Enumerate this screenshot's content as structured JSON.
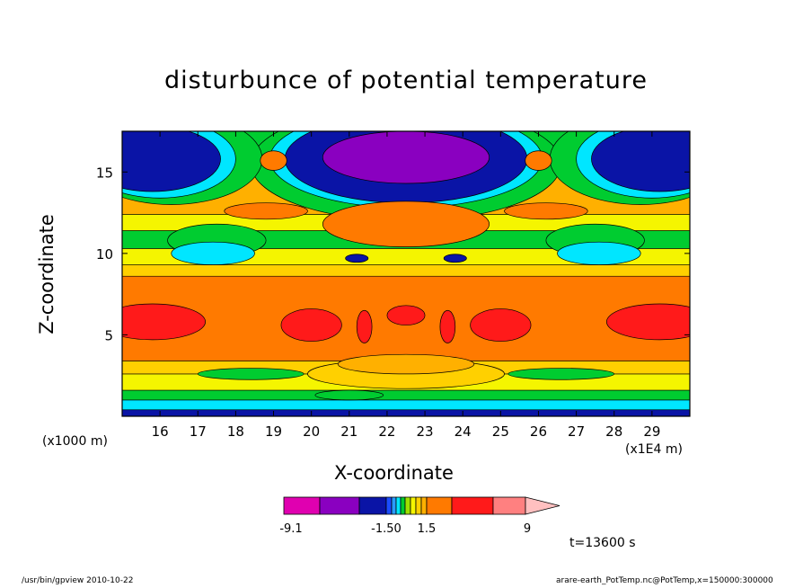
{
  "chart_data": {
    "type": "heatmap",
    "title": "disturbunce of potential temperature",
    "xlabel": "X-coordinate",
    "ylabel": "Z-coordinate",
    "x_unit": "(x1E4 m)",
    "y_unit": "(x1000 m)",
    "xlim": [
      15,
      30
    ],
    "ylim": [
      0,
      17.5
    ],
    "x_ticks": [
      16,
      17,
      18,
      19,
      20,
      21,
      22,
      23,
      24,
      25,
      26,
      27,
      28,
      29
    ],
    "y_ticks": [
      5,
      10,
      15
    ],
    "time_label": "t=13600 s",
    "colorbar": {
      "labels": [
        {
          "value": -9.1,
          "text": "-9.1"
        },
        {
          "value": -1.5,
          "text": "-1.50"
        },
        {
          "value": 1.5,
          "text": "1.5"
        },
        {
          "value": 9,
          "text": "9"
        }
      ],
      "colors": [
        "#e000b0",
        "#8a00c0",
        "#0a14a6",
        "#1b4cff",
        "#2a9bff",
        "#00e6ff",
        "#00cc30",
        "#9fe000",
        "#f5f500",
        "#ffd000",
        "#ffb000",
        "#ff7a00",
        "#ff1a1a",
        "#ff8080",
        "#ffc0c0"
      ]
    },
    "bands": [
      {
        "z": [
          0,
          0.4
        ],
        "color": "#0a14a6"
      },
      {
        "z": [
          0.4,
          1.0
        ],
        "color": "#00e6ff"
      },
      {
        "z": [
          1.0,
          1.6
        ],
        "color": "#00cc30"
      },
      {
        "z": [
          1.6,
          2.6
        ],
        "color": "#f5f500"
      },
      {
        "z": [
          2.6,
          3.4
        ],
        "color": "#ffd000"
      },
      {
        "z": [
          3.4,
          8.6
        ],
        "color": "#ff7a00"
      },
      {
        "z": [
          8.6,
          9.3
        ],
        "color": "#ffd000"
      },
      {
        "z": [
          9.3,
          10.3
        ],
        "color": "#f5f500"
      },
      {
        "z": [
          10.3,
          11.4
        ],
        "color": "#00cc30"
      },
      {
        "z": [
          11.4,
          12.4
        ],
        "color": "#f5f500"
      },
      {
        "z": [
          12.4,
          15.5
        ],
        "color": "#ffb000"
      },
      {
        "z": [
          15.5,
          17.5
        ],
        "color": "#00cc30"
      }
    ],
    "features": [
      {
        "shape": "ellipse",
        "cx": 22.5,
        "cz": 15.5,
        "rx": 4.1,
        "rz": 3.5,
        "color": "#00cc30"
      },
      {
        "shape": "ellipse",
        "cx": 22.5,
        "cz": 15.8,
        "rx": 3.6,
        "rz": 3.0,
        "color": "#00e6ff"
      },
      {
        "shape": "ellipse",
        "cx": 22.5,
        "cz": 15.8,
        "rx": 3.2,
        "rz": 2.7,
        "color": "#0a14a6"
      },
      {
        "shape": "ellipse",
        "cx": 22.5,
        "cz": 15.9,
        "rx": 2.2,
        "rz": 1.6,
        "color": "#8a00c0"
      },
      {
        "shape": "ellipse",
        "cx": 16.3,
        "cz": 15.8,
        "rx": 2.4,
        "rz": 2.8,
        "color": "#00cc30"
      },
      {
        "shape": "ellipse",
        "cx": 16.0,
        "cz": 15.8,
        "rx": 2.0,
        "rz": 2.4,
        "color": "#00e6ff"
      },
      {
        "shape": "ellipse",
        "cx": 15.8,
        "cz": 15.8,
        "rx": 1.8,
        "rz": 2.0,
        "color": "#0a14a6"
      },
      {
        "shape": "ellipse",
        "cx": 28.7,
        "cz": 15.8,
        "rx": 2.4,
        "rz": 2.8,
        "color": "#00cc30"
      },
      {
        "shape": "ellipse",
        "cx": 29.0,
        "cz": 15.8,
        "rx": 2.0,
        "rz": 2.4,
        "color": "#00e6ff"
      },
      {
        "shape": "ellipse",
        "cx": 29.2,
        "cz": 15.8,
        "rx": 1.8,
        "rz": 2.0,
        "color": "#0a14a6"
      },
      {
        "shape": "ellipse",
        "cx": 17.5,
        "cz": 10.8,
        "rx": 1.3,
        "rz": 1.0,
        "color": "#00cc30"
      },
      {
        "shape": "ellipse",
        "cx": 17.4,
        "cz": 10.0,
        "rx": 1.1,
        "rz": 0.7,
        "color": "#00e6ff"
      },
      {
        "shape": "ellipse",
        "cx": 27.5,
        "cz": 10.8,
        "rx": 1.3,
        "rz": 1.0,
        "color": "#00cc30"
      },
      {
        "shape": "ellipse",
        "cx": 27.6,
        "cz": 10.0,
        "rx": 1.1,
        "rz": 0.7,
        "color": "#00e6ff"
      },
      {
        "shape": "ellipse",
        "cx": 22.5,
        "cz": 11.8,
        "rx": 2.2,
        "rz": 1.4,
        "color": "#ff7a00"
      },
      {
        "shape": "ellipse",
        "cx": 18.8,
        "cz": 12.6,
        "rx": 1.1,
        "rz": 0.5,
        "color": "#ff7a00"
      },
      {
        "shape": "ellipse",
        "cx": 26.2,
        "cz": 12.6,
        "rx": 1.1,
        "rz": 0.5,
        "color": "#ff7a00"
      },
      {
        "shape": "ellipse",
        "cx": 19.0,
        "cz": 15.7,
        "rx": 0.35,
        "rz": 0.6,
        "color": "#ff7a00"
      },
      {
        "shape": "ellipse",
        "cx": 26.0,
        "cz": 15.7,
        "rx": 0.35,
        "rz": 0.6,
        "color": "#ff7a00"
      },
      {
        "shape": "ellipse",
        "cx": 21.2,
        "cz": 9.7,
        "rx": 0.3,
        "rz": 0.25,
        "color": "#0a14a6"
      },
      {
        "shape": "ellipse",
        "cx": 23.8,
        "cz": 9.7,
        "rx": 0.3,
        "rz": 0.25,
        "color": "#0a14a6"
      },
      {
        "shape": "ellipse",
        "cx": 15.8,
        "cz": 5.8,
        "rx": 1.4,
        "rz": 1.1,
        "color": "#ff1a1a"
      },
      {
        "shape": "ellipse",
        "cx": 29.2,
        "cz": 5.8,
        "rx": 1.4,
        "rz": 1.1,
        "color": "#ff1a1a"
      },
      {
        "shape": "ellipse",
        "cx": 20.0,
        "cz": 5.6,
        "rx": 0.8,
        "rz": 1.0,
        "color": "#ff1a1a"
      },
      {
        "shape": "ellipse",
        "cx": 25.0,
        "cz": 5.6,
        "rx": 0.8,
        "rz": 1.0,
        "color": "#ff1a1a"
      },
      {
        "shape": "ellipse",
        "cx": 21.4,
        "cz": 5.5,
        "rx": 0.2,
        "rz": 1.0,
        "color": "#ff1a1a"
      },
      {
        "shape": "ellipse",
        "cx": 23.6,
        "cz": 5.5,
        "rx": 0.2,
        "rz": 1.0,
        "color": "#ff1a1a"
      },
      {
        "shape": "ellipse",
        "cx": 22.5,
        "cz": 6.2,
        "rx": 0.5,
        "rz": 0.6,
        "color": "#ff1a1a"
      },
      {
        "shape": "ellipse",
        "cx": 22.5,
        "cz": 2.6,
        "rx": 2.6,
        "rz": 0.9,
        "color": "#ffd000"
      },
      {
        "shape": "ellipse",
        "cx": 22.5,
        "cz": 3.2,
        "rx": 1.8,
        "rz": 0.6,
        "color": "#ffb000"
      },
      {
        "shape": "ellipse",
        "cx": 18.4,
        "cz": 2.6,
        "rx": 1.4,
        "rz": 0.35,
        "color": "#00cc30"
      },
      {
        "shape": "ellipse",
        "cx": 26.6,
        "cz": 2.6,
        "rx": 1.4,
        "rz": 0.35,
        "color": "#00cc30"
      },
      {
        "shape": "ellipse",
        "cx": 21.0,
        "cz": 1.3,
        "rx": 0.9,
        "rz": 0.3,
        "color": "#00cc30"
      }
    ]
  },
  "footer": {
    "left": "/usr/bin/gpview  2010-10-22",
    "right": "arare-earth_PotTemp.nc@PotTemp,x=150000:300000"
  }
}
